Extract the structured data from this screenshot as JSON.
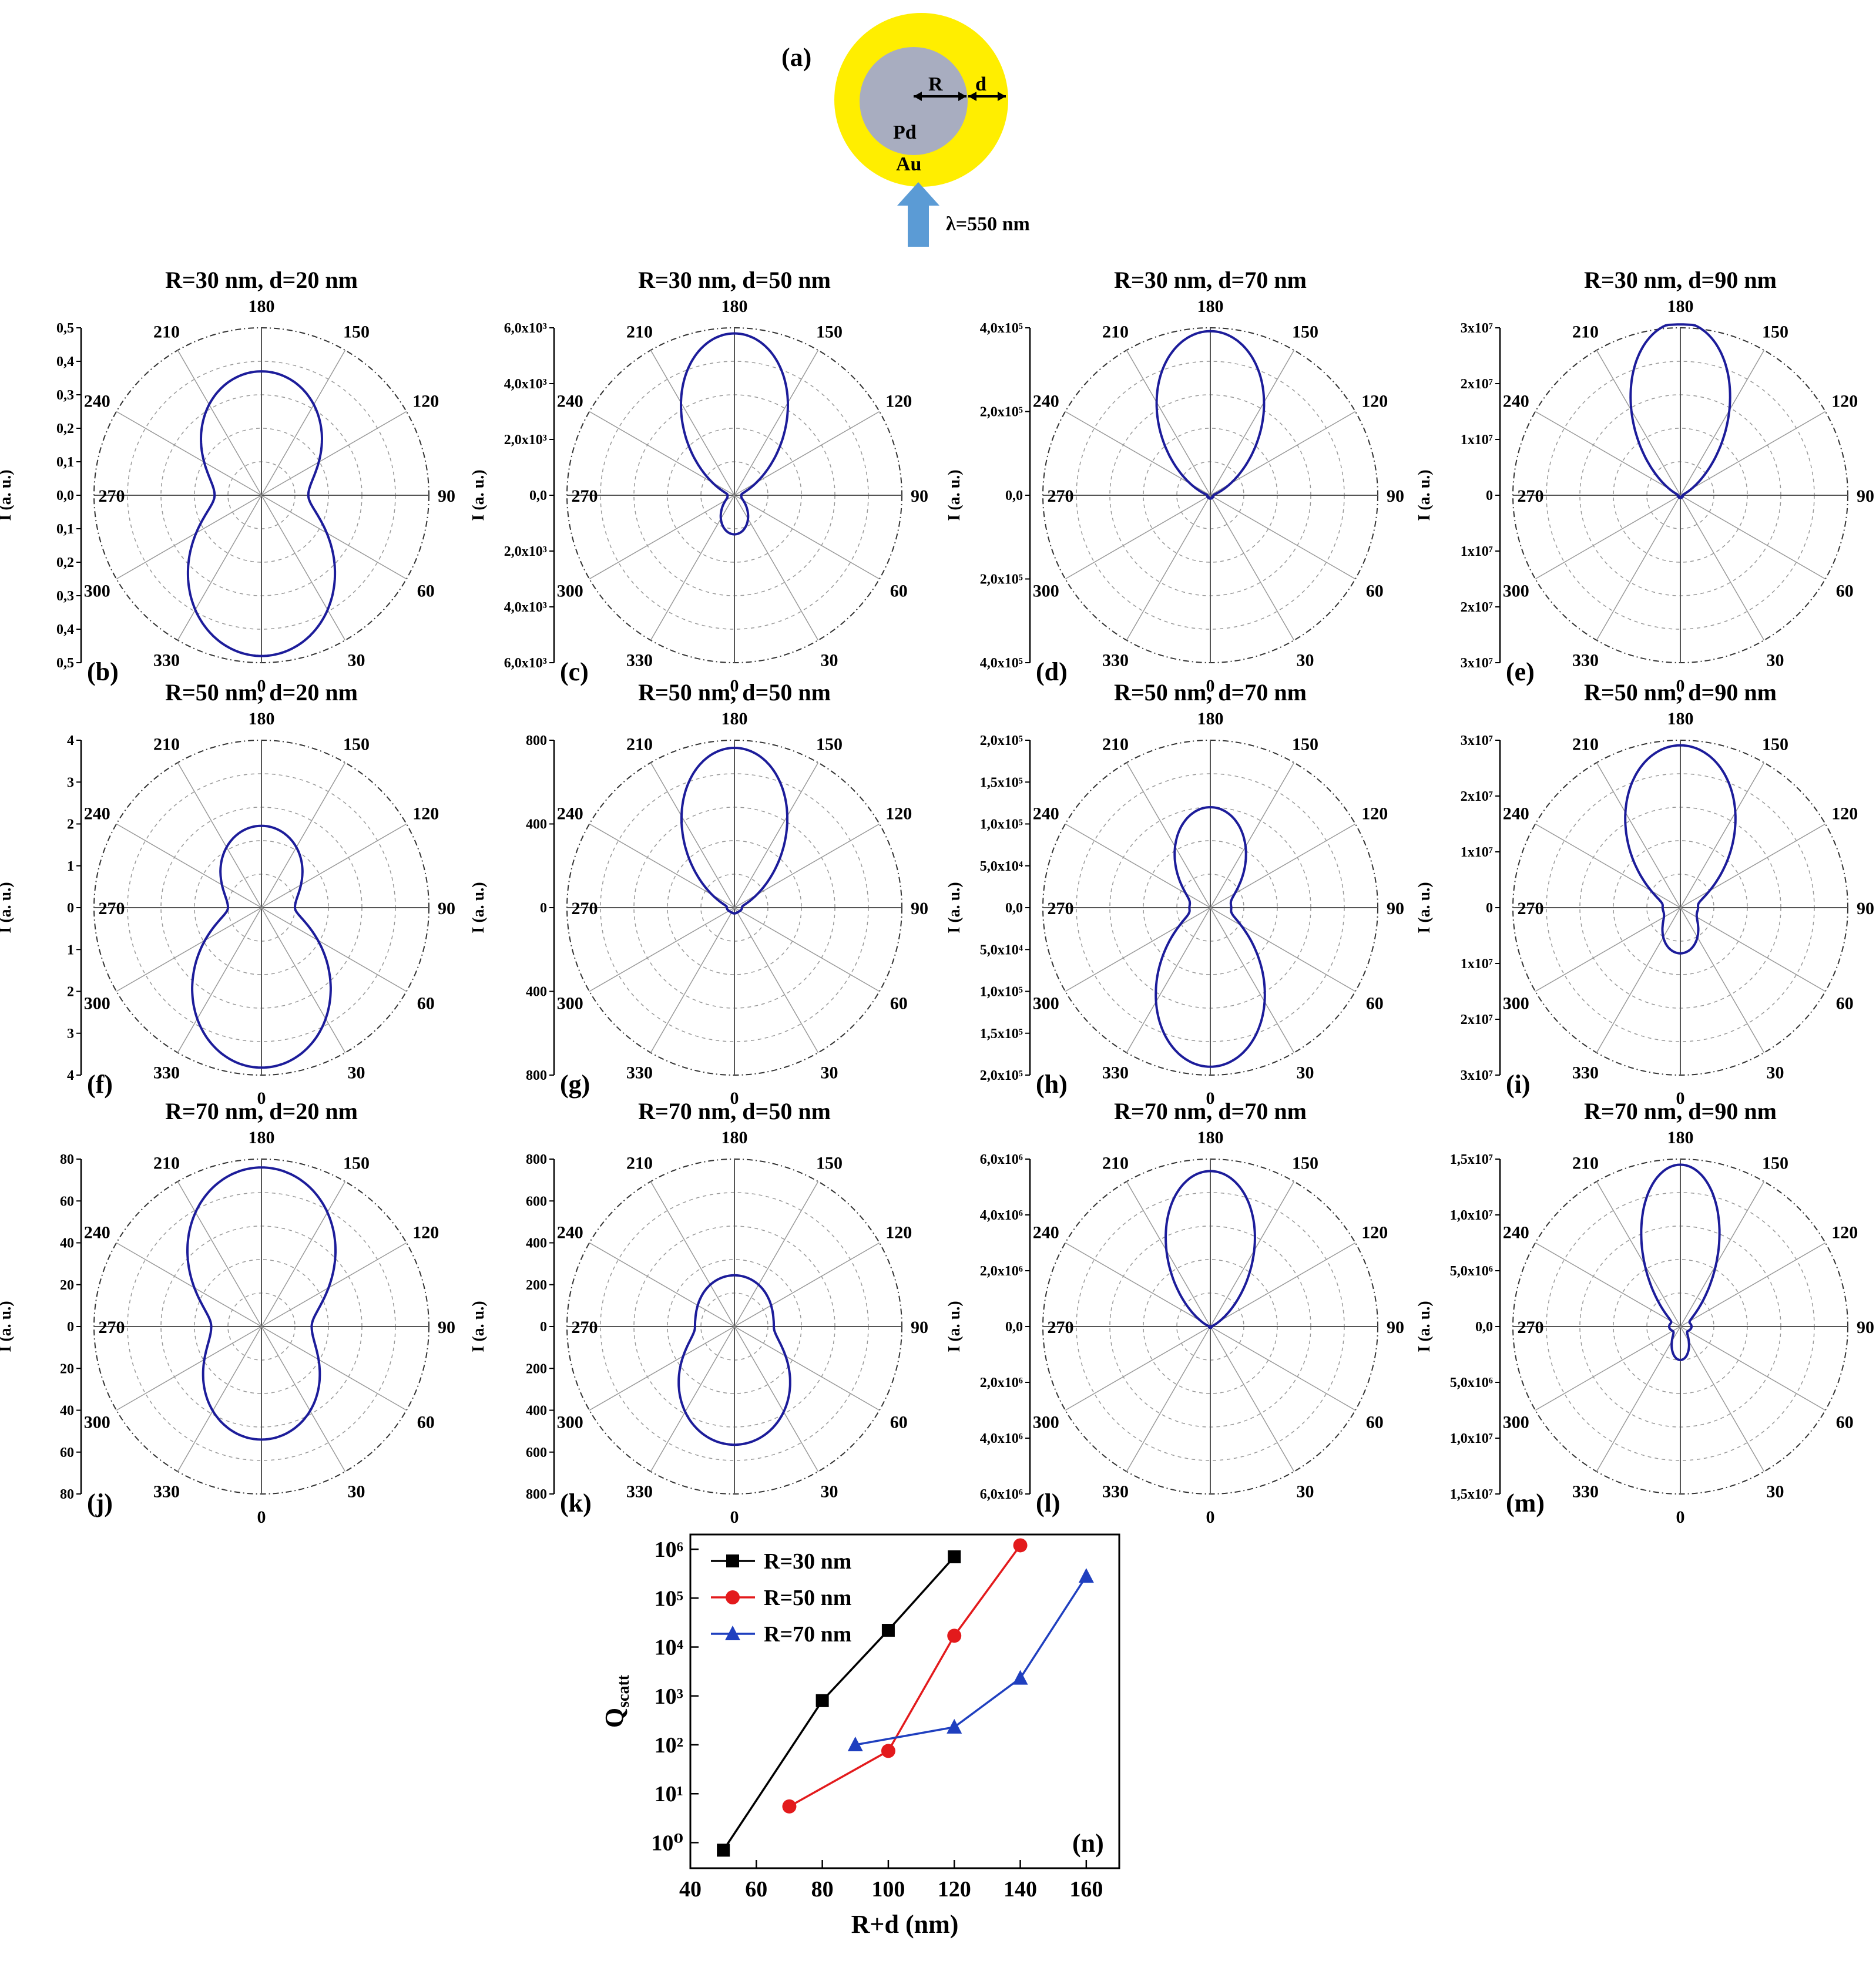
{
  "schematic": {
    "label": "(a)",
    "core_material": "Pd",
    "shell_material": "Au",
    "radius_label": "R",
    "thickness_label": "d",
    "wavelength_label": "λ=550 nm",
    "colors": {
      "shell": "#ffee00",
      "core": "#a8adc0",
      "arrow": "#5b9bd5"
    }
  },
  "chart_data": [
    {
      "type": "polar",
      "panel": "(b)",
      "title": "R=30 nm, d=20 nm",
      "ylabel": "I (a. u.)",
      "rmax": 0.5,
      "radial_ticks": [
        "0,5",
        "0,4",
        "0,3",
        "0,2",
        "0,1",
        "0,0",
        "0,1",
        "0,2",
        "0,3",
        "0,4",
        "0,5"
      ],
      "angle_ticks": [
        "0",
        "30",
        "60",
        "90",
        "120",
        "150",
        "180",
        "210",
        "240",
        "270",
        "300",
        "330"
      ],
      "pattern": {
        "forward": 0.48,
        "backward": 0.37,
        "power": 2,
        "shoulder": 0.14
      },
      "line_color": "#1c1c9a"
    },
    {
      "type": "polar",
      "panel": "(c)",
      "title": "R=30 nm, d=50 nm",
      "ylabel": "I (a. u.)",
      "rmax": 6.0,
      "radial_ticks": [
        "6,0x10³",
        "4,0x10³",
        "2,0x10³",
        "0,0",
        "2,0x10³",
        "4,0x10³",
        "6,0x10³"
      ],
      "angle_ticks": [
        "0",
        "30",
        "60",
        "90",
        "120",
        "150",
        "180",
        "210",
        "240",
        "270",
        "300",
        "330"
      ],
      "pattern": {
        "forward": 1.4,
        "backward": 5.8,
        "power": 3,
        "shoulder": 0.25
      },
      "line_color": "#1c1c9a"
    },
    {
      "type": "polar",
      "panel": "(d)",
      "title": "R=30 nm, d=70 nm",
      "ylabel": "I (a. u.)",
      "rmax": 5.0,
      "radial_ticks": [
        "4,0x10⁵",
        "2,0x10⁵",
        "0,0",
        "2,0x10⁵",
        "4,0x10⁵"
      ],
      "angle_ticks": [
        "0",
        "30",
        "60",
        "90",
        "120",
        "150",
        "180",
        "210",
        "240",
        "270",
        "300",
        "330"
      ],
      "pattern": {
        "forward": 0.1,
        "backward": 4.9,
        "power": 3,
        "shoulder": 0.1
      },
      "line_color": "#1c1c9a"
    },
    {
      "type": "polar",
      "panel": "(e)",
      "title": "R=30 nm, d=90 nm",
      "ylabel": "I (a. u.)",
      "rmax": 3.0,
      "radial_ticks": [
        "3x10⁷",
        "2x10⁷",
        "1x10⁷",
        "0",
        "1x10⁷",
        "2x10⁷",
        "3x10⁷"
      ],
      "angle_ticks": [
        "0",
        "30",
        "60",
        "90",
        "120",
        "150",
        "180",
        "210",
        "240",
        "270",
        "300",
        "330"
      ],
      "pattern": {
        "forward": 0.05,
        "backward": 3.1,
        "power": 4,
        "shoulder": 0.05
      },
      "line_color": "#1c1c9a"
    },
    {
      "type": "polar",
      "panel": "(f)",
      "title": "R=50 nm, d=20 nm",
      "ylabel": "I (a. u.)",
      "rmax": 4.5,
      "radial_ticks": [
        "4",
        "3",
        "2",
        "1",
        "0",
        "1",
        "2",
        "3",
        "4"
      ],
      "angle_ticks": [
        "0",
        "30",
        "60",
        "90",
        "120",
        "150",
        "180",
        "210",
        "240",
        "270",
        "300",
        "330"
      ],
      "pattern": {
        "forward": 4.3,
        "backward": 2.2,
        "power": 2,
        "shoulder": 0.9
      },
      "line_color": "#1c1c9a"
    },
    {
      "type": "polar",
      "panel": "(g)",
      "title": "R=50 nm, d=50 nm",
      "ylabel": "I (a. u.)",
      "rmax": 880,
      "radial_ticks": [
        "800",
        "400",
        "0",
        "400",
        "800"
      ],
      "angle_ticks": [
        "0",
        "30",
        "60",
        "90",
        "120",
        "150",
        "180",
        "210",
        "240",
        "270",
        "300",
        "330"
      ],
      "pattern": {
        "forward": 30,
        "backward": 840,
        "power": 3,
        "shoulder": 40
      },
      "line_color": "#1c1c9a"
    },
    {
      "type": "polar",
      "panel": "(h)",
      "title": "R=50 nm, d=70 nm",
      "ylabel": "I (a. u.)",
      "rmax": 2.0,
      "radial_ticks": [
        "2,0x10⁵",
        "1,5x10⁵",
        "1,0x10⁵",
        "5,0x10⁴",
        "0,0",
        "5,0x10⁴",
        "1,0x10⁵",
        "1,5x10⁵",
        "2,0x10⁵"
      ],
      "angle_ticks": [
        "0",
        "30",
        "60",
        "90",
        "120",
        "150",
        "180",
        "210",
        "240",
        "270",
        "300",
        "330"
      ],
      "pattern": {
        "forward": 1.9,
        "backward": 1.2,
        "power": 3,
        "shoulder": 0.25
      },
      "line_color": "#1c1c9a"
    },
    {
      "type": "polar",
      "panel": "(i)",
      "title": "R=50 nm, d=90 nm",
      "ylabel": "I (a. u.)",
      "rmax": 3.3,
      "radial_ticks": [
        "3x10⁷",
        "2x10⁷",
        "1x10⁷",
        "0",
        "1x10⁷",
        "2x10⁷",
        "3x10⁷"
      ],
      "angle_ticks": [
        "0",
        "30",
        "60",
        "90",
        "120",
        "150",
        "180",
        "210",
        "240",
        "270",
        "300",
        "330"
      ],
      "pattern": {
        "forward": 0.9,
        "backward": 3.2,
        "power": 3,
        "shoulder": 0.35
      },
      "line_color": "#1c1c9a"
    },
    {
      "type": "polar",
      "panel": "(j)",
      "title": "R=70 nm, d=20 nm",
      "ylabel": "I (a. u.)",
      "rmax": 80,
      "radial_ticks": [
        "80",
        "60",
        "40",
        "20",
        "0",
        "20",
        "40",
        "60",
        "80"
      ],
      "angle_ticks": [
        "0",
        "30",
        "60",
        "90",
        "120",
        "150",
        "180",
        "210",
        "240",
        "270",
        "300",
        "330"
      ],
      "pattern": {
        "forward": 54,
        "backward": 76,
        "power": 2,
        "shoulder": 24
      },
      "line_color": "#1c1c9a"
    },
    {
      "type": "polar",
      "panel": "(k)",
      "title": "R=70 nm, d=50 nm",
      "ylabel": "I (a. u.)",
      "rmax": 850,
      "radial_ticks": [
        "800",
        "600",
        "400",
        "200",
        "0",
        "200",
        "400",
        "600",
        "800"
      ],
      "angle_ticks": [
        "0",
        "30",
        "60",
        "90",
        "120",
        "150",
        "180",
        "210",
        "240",
        "270",
        "300",
        "330"
      ],
      "pattern": {
        "forward": 600,
        "backward": 260,
        "power": 2,
        "shoulder": 200
      },
      "line_color": "#1c1c9a"
    },
    {
      "type": "polar",
      "panel": "(l)",
      "title": "R=70 nm, d=70 nm",
      "ylabel": "I (a. u.)",
      "rmax": 7.0,
      "radial_ticks": [
        "6,0x10⁶",
        "4,0x10⁶",
        "2,0x10⁶",
        "0,0",
        "2,0x10⁶",
        "4,0x10⁶",
        "6,0x10⁶"
      ],
      "angle_ticks": [
        "0",
        "30",
        "60",
        "90",
        "120",
        "150",
        "180",
        "210",
        "240",
        "270",
        "300",
        "330"
      ],
      "pattern": {
        "forward": 0.05,
        "backward": 6.5,
        "power": 4,
        "shoulder": 0.05
      },
      "line_color": "#1c1c9a"
    },
    {
      "type": "polar",
      "panel": "(m)",
      "title": "R=70 nm, d=90 nm",
      "ylabel": "I (a. u.)",
      "rmax": 1.5,
      "radial_ticks": [
        "1,5x10⁷",
        "1,0x10⁷",
        "5,0x10⁶",
        "0,0",
        "5,0x10⁶",
        "1,0x10⁷",
        "1,5x10⁷"
      ],
      "angle_ticks": [
        "0",
        "30",
        "60",
        "90",
        "120",
        "150",
        "180",
        "210",
        "240",
        "270",
        "300",
        "330"
      ],
      "pattern": {
        "forward": 0.3,
        "backward": 1.45,
        "power": 6,
        "shoulder": 0.1
      },
      "line_color": "#1c1c9a"
    },
    {
      "type": "line",
      "panel": "(n)",
      "xlabel": "R+d (nm)",
      "ylabel": "Q",
      "ylabel_sub": "scatt",
      "yscale": "log",
      "xlim": [
        40,
        170
      ],
      "ylim": [
        0.3,
        2000000
      ],
      "xticks": [
        40,
        60,
        80,
        100,
        120,
        140,
        160
      ],
      "yticks": [
        1,
        10,
        100,
        1000,
        10000,
        100000,
        1000000
      ],
      "ytick_labels": [
        "10⁰",
        "10¹",
        "10²",
        "10³",
        "10⁴",
        "10⁵",
        "10⁶"
      ],
      "legend_position": "top-left",
      "series": [
        {
          "name": "R=30 nm",
          "marker": "square",
          "color": "#000000",
          "x": [
            50,
            80,
            100,
            120
          ],
          "y": [
            0.7,
            800,
            22000,
            700000
          ]
        },
        {
          "name": "R=50 nm",
          "marker": "circle",
          "color": "#e31a1c",
          "x": [
            70,
            100,
            120,
            140
          ],
          "y": [
            5.5,
            75,
            17000,
            1200000
          ]
        },
        {
          "name": "R=70 nm",
          "marker": "triangle",
          "color": "#1f3fbf",
          "x": [
            90,
            120,
            140,
            160
          ],
          "y": [
            100,
            230,
            2300,
            280000
          ]
        }
      ]
    }
  ]
}
